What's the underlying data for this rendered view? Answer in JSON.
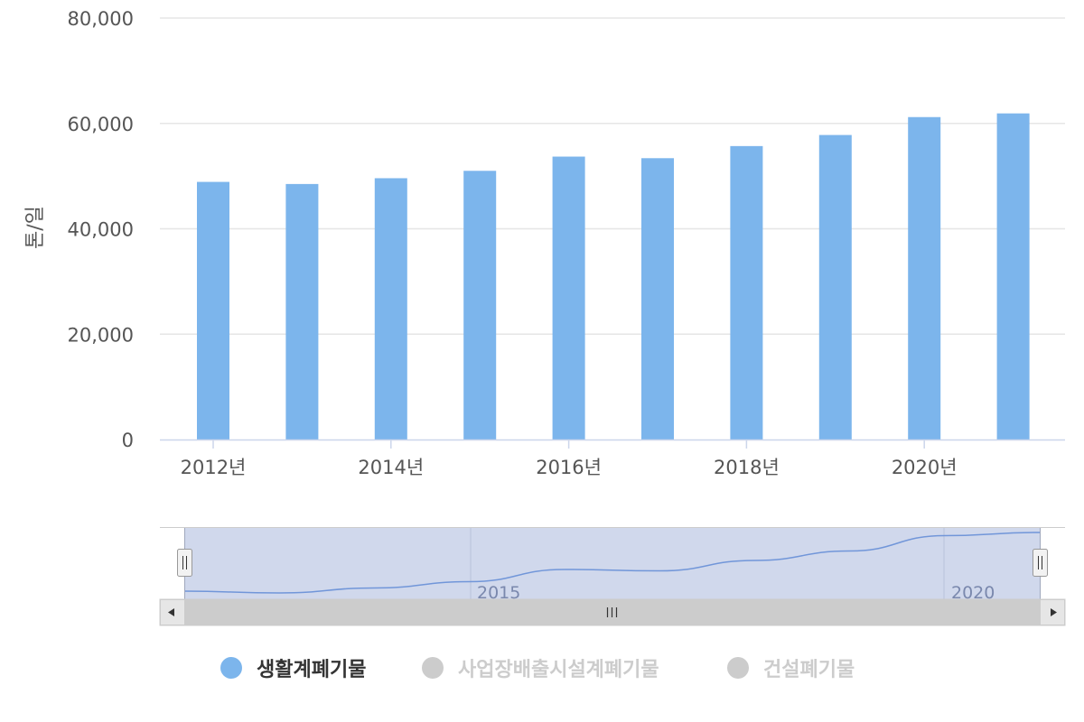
{
  "chart_data": {
    "type": "bar",
    "categories": [
      "2012년",
      "2013년",
      "2014년",
      "2015년",
      "2016년",
      "2017년",
      "2018년",
      "2019년",
      "2020년",
      "2021년"
    ],
    "series": [
      {
        "name": "생활계폐기물",
        "color": "#7cb5ec",
        "values": [
          48900,
          48500,
          49600,
          51000,
          53700,
          53400,
          55700,
          57800,
          61200,
          61900
        ],
        "visible": true
      },
      {
        "name": "사업장배출시설계폐기물",
        "color": "#cccccc",
        "visible": false
      },
      {
        "name": "건설폐기물",
        "color": "#cccccc",
        "visible": false
      }
    ],
    "ylabel": "톤/일",
    "ylim": [
      0,
      80000
    ],
    "yticks": [
      "0",
      "20,000",
      "40,000",
      "60,000",
      "80,000"
    ],
    "xtick_labels": [
      "2012년",
      "2014년",
      "2016년",
      "2018년",
      "2020년"
    ],
    "grid": true,
    "legend_position": "bottom-center",
    "navigator": {
      "labels": [
        "2015",
        "2020"
      ]
    }
  }
}
